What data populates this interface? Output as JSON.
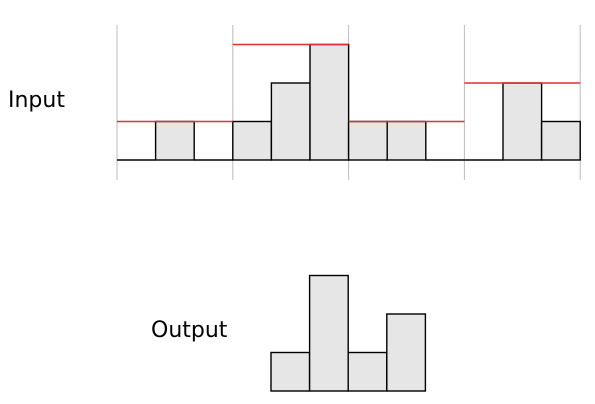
{
  "labels": {
    "input": "Input",
    "output": "Output"
  },
  "colors": {
    "bar_fill": "#e6e6e6",
    "bar_stroke": "#000000",
    "max_line": "#e03030",
    "divider": "#bbbbbb"
  },
  "input": {
    "values": [
      0,
      1,
      0,
      1,
      2,
      3,
      1,
      1,
      0,
      0,
      2,
      1
    ],
    "window_size": 3,
    "window_max": [
      1,
      3,
      1,
      2
    ]
  },
  "output": {
    "values": [
      1,
      3,
      1,
      2
    ]
  }
}
